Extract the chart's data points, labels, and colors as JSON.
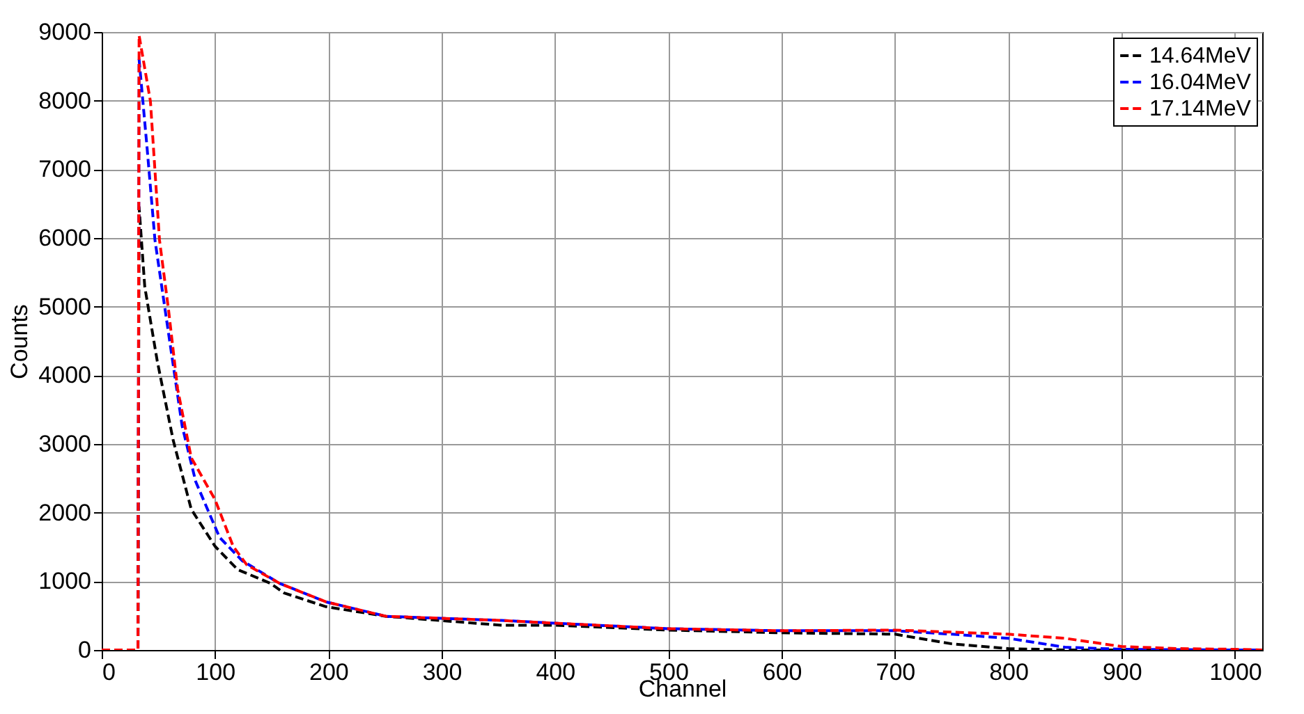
{
  "chart_data": {
    "type": "line",
    "xlabel": "Channel",
    "ylabel": "Counts",
    "xlim": [
      0,
      1024
    ],
    "ylim": [
      0,
      9000
    ],
    "xticks": [
      0,
      100,
      200,
      300,
      400,
      500,
      600,
      700,
      800,
      900,
      1000
    ],
    "yticks": [
      0,
      1000,
      2000,
      3000,
      4000,
      5000,
      6000,
      7000,
      8000,
      9000
    ],
    "grid": true,
    "legend": "top right",
    "marker": "none",
    "line_style": "dashed",
    "series": [
      {
        "name": "14.64MeV",
        "color": "#000000",
        "x": [
          0,
          32,
          33,
          38,
          49,
          63,
          79,
          100,
          120,
          149,
          161,
          198,
          251,
          353,
          400,
          500,
          600,
          700,
          750,
          800,
          850,
          900,
          1000,
          1024
        ],
        "values": [
          0,
          0,
          6450,
          5290,
          4210,
          3060,
          2050,
          1510,
          1170,
          970,
          830,
          630,
          490,
          360,
          360,
          290,
          250,
          230,
          90,
          20,
          0,
          0,
          0,
          0
        ]
      },
      {
        "name": "16.04MeV",
        "color": "#0000ff",
        "x": [
          0,
          32,
          33,
          40,
          47,
          59,
          71,
          83,
          104,
          124,
          157,
          198,
          251,
          353,
          400,
          500,
          600,
          700,
          750,
          800,
          850,
          900,
          1000,
          1024
        ],
        "values": [
          0,
          0,
          8600,
          7320,
          5970,
          4610,
          3260,
          2450,
          1640,
          1300,
          970,
          700,
          490,
          430,
          390,
          310,
          280,
          280,
          230,
          170,
          40,
          10,
          0,
          0
        ]
      },
      {
        "name": "17.14MeV",
        "color": "#ff0000",
        "x": [
          0,
          32,
          33,
          43,
          51,
          59,
          67,
          79,
          100,
          116,
          128,
          157,
          198,
          251,
          353,
          400,
          500,
          600,
          700,
          750,
          800,
          850,
          900,
          950,
          1000,
          1024
        ],
        "values": [
          0,
          0,
          8950,
          7990,
          5970,
          4950,
          3800,
          2800,
          2190,
          1510,
          1240,
          970,
          700,
          490,
          430,
          390,
          310,
          280,
          290,
          260,
          230,
          170,
          50,
          20,
          10,
          0
        ]
      }
    ]
  }
}
